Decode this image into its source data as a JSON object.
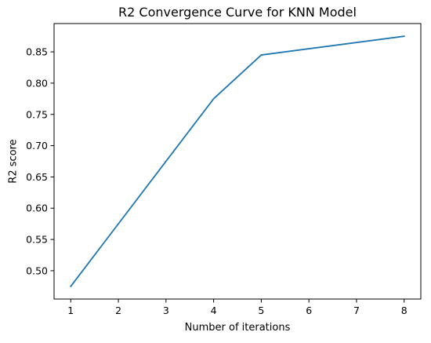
{
  "chart_data": {
    "type": "line",
    "title": "R2 Convergence Curve for KNN Model",
    "xlabel": "Number of iterations",
    "ylabel": "R2 score",
    "xlim": [
      0.65,
      8.35
    ],
    "ylim": [
      0.4547,
      0.8953
    ],
    "xticks": [
      1,
      2,
      3,
      4,
      5,
      6,
      7,
      8
    ],
    "xtick_labels": [
      "1",
      "2",
      "3",
      "4",
      "5",
      "6",
      "7",
      "8"
    ],
    "yticks": [
      0.5,
      0.55,
      0.6,
      0.65,
      0.7,
      0.75,
      0.8,
      0.85
    ],
    "ytick_labels": [
      "0.50",
      "0.55",
      "0.60",
      "0.65",
      "0.70",
      "0.75",
      "0.80",
      "0.85"
    ],
    "grid": false,
    "series": [
      {
        "color": "#1f77b4",
        "x": [
          1,
          4,
          5,
          8
        ],
        "y": [
          0.475,
          0.775,
          0.845,
          0.875
        ]
      }
    ]
  }
}
